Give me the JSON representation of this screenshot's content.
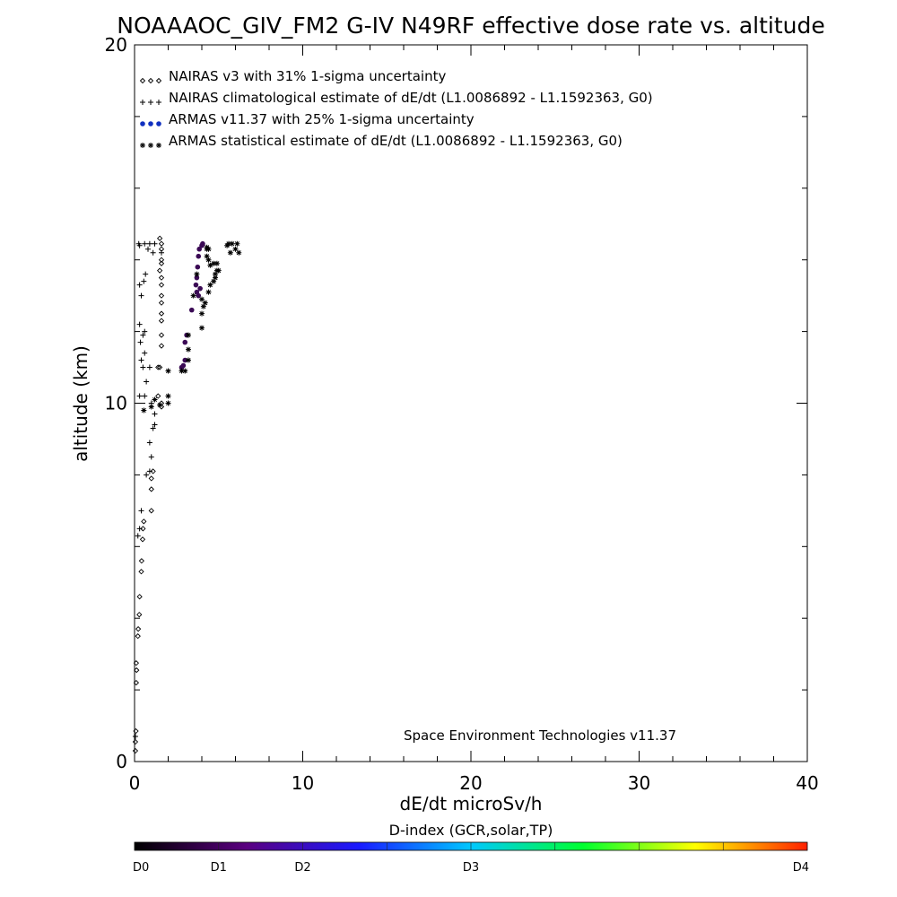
{
  "chart_data": {
    "type": "scatter",
    "title": "NOAAAOC_GIV_FM2 G-IV   N49RF  effective dose rate vs. altitude",
    "xlabel": "dE/dt microSv/h",
    "ylabel": "altitude (km)",
    "xlim": [
      0,
      40
    ],
    "ylim": [
      0,
      20
    ],
    "x_ticks": [
      "0",
      "10",
      "20",
      "30",
      "40"
    ],
    "y_ticks": [
      "0",
      "10",
      "20"
    ],
    "grid": false,
    "legend_position": "top-left",
    "annotation": "Space Environment Technologies v11.37",
    "series": [
      {
        "name": "NAIRAS v3 with 31% 1-sigma uncertainty",
        "marker": "diamond",
        "color": "#000000",
        "points": [
          [
            0.05,
            0.3
          ],
          [
            0.05,
            0.55
          ],
          [
            0.08,
            0.85
          ],
          [
            0.1,
            2.2
          ],
          [
            0.12,
            2.55
          ],
          [
            0.1,
            2.75
          ],
          [
            0.2,
            3.5
          ],
          [
            0.22,
            3.7
          ],
          [
            0.28,
            4.1
          ],
          [
            0.3,
            4.6
          ],
          [
            0.4,
            5.3
          ],
          [
            0.42,
            5.6
          ],
          [
            0.48,
            6.2
          ],
          [
            0.5,
            6.5
          ],
          [
            0.55,
            6.7
          ],
          [
            1.0,
            7.0
          ],
          [
            1.0,
            7.6
          ],
          [
            1.0,
            7.9
          ],
          [
            1.1,
            8.1
          ],
          [
            1.6,
            9.9
          ],
          [
            1.4,
            10.2
          ],
          [
            1.5,
            11.0
          ],
          [
            1.6,
            11.6
          ],
          [
            1.6,
            11.9
          ],
          [
            1.6,
            12.3
          ],
          [
            1.6,
            12.5
          ],
          [
            1.6,
            12.8
          ],
          [
            1.6,
            13.0
          ],
          [
            1.6,
            13.3
          ],
          [
            1.6,
            13.5
          ],
          [
            1.6,
            13.9
          ],
          [
            1.6,
            14.0
          ],
          [
            1.6,
            14.3
          ],
          [
            1.5,
            14.6
          ],
          [
            1.5,
            13.7
          ],
          [
            1.6,
            14.45
          ],
          [
            1.4,
            11.0
          ],
          [
            1.6,
            10.0
          ]
        ]
      },
      {
        "name": "NAIRAS climatological estimate of dE/dt (L1.0086892 - L1.1592363, G0)",
        "marker": "plus",
        "color": "#000000",
        "points": [
          [
            0.05,
            0.7
          ],
          [
            0.2,
            6.3
          ],
          [
            0.3,
            6.5
          ],
          [
            0.4,
            7.0
          ],
          [
            0.7,
            8.0
          ],
          [
            0.9,
            8.1
          ],
          [
            1.0,
            8.5
          ],
          [
            0.9,
            8.9
          ],
          [
            1.1,
            9.3
          ],
          [
            1.2,
            9.4
          ],
          [
            1.2,
            9.7
          ],
          [
            1.0,
            10.0
          ],
          [
            0.3,
            10.2
          ],
          [
            0.6,
            10.2
          ],
          [
            0.7,
            10.6
          ],
          [
            0.5,
            11.0
          ],
          [
            0.9,
            11.0
          ],
          [
            0.4,
            11.2
          ],
          [
            0.6,
            11.4
          ],
          [
            0.35,
            11.7
          ],
          [
            0.5,
            11.9
          ],
          [
            0.6,
            12.0
          ],
          [
            0.3,
            12.2
          ],
          [
            0.4,
            13.0
          ],
          [
            0.3,
            13.3
          ],
          [
            0.55,
            13.4
          ],
          [
            0.65,
            13.6
          ],
          [
            1.1,
            14.2
          ],
          [
            1.6,
            14.2
          ],
          [
            0.3,
            14.4
          ],
          [
            0.6,
            14.45
          ],
          [
            0.9,
            14.45
          ],
          [
            1.2,
            14.45
          ],
          [
            0.25,
            14.45
          ],
          [
            0.8,
            14.3
          ]
        ]
      },
      {
        "name": "ARMAS v11.37 with 25% 1-sigma uncertainty",
        "marker": "dot",
        "color": "#1030c0",
        "points": [
          [
            2.8,
            11.0
          ],
          [
            2.9,
            11.05
          ],
          [
            3.0,
            11.2
          ],
          [
            3.0,
            11.7
          ],
          [
            3.1,
            11.9
          ],
          [
            3.4,
            12.6
          ],
          [
            3.7,
            13.1
          ],
          [
            3.65,
            13.3
          ],
          [
            3.7,
            13.5
          ],
          [
            3.75,
            13.8
          ],
          [
            3.8,
            14.1
          ],
          [
            3.85,
            14.3
          ],
          [
            4.0,
            14.4
          ],
          [
            4.05,
            14.45
          ],
          [
            3.9,
            13.2
          ],
          [
            3.8,
            13.0
          ]
        ]
      },
      {
        "name": "ARMAS statistical estimate of dE/dt (L1.0086892 - L1.1592363, G0)",
        "marker": "asterisk",
        "color": "#000000",
        "points": [
          [
            0.55,
            9.8
          ],
          [
            1.0,
            9.9
          ],
          [
            1.5,
            9.95
          ],
          [
            2.0,
            10.0
          ],
          [
            2.0,
            10.2
          ],
          [
            1.2,
            10.1
          ],
          [
            2.0,
            10.9
          ],
          [
            3.0,
            10.9
          ],
          [
            3.2,
            11.2
          ],
          [
            3.2,
            11.5
          ],
          [
            3.2,
            11.9
          ],
          [
            4.0,
            12.1
          ],
          [
            4.0,
            12.5
          ],
          [
            4.1,
            12.7
          ],
          [
            4.0,
            12.9
          ],
          [
            4.4,
            13.1
          ],
          [
            4.5,
            13.3
          ],
          [
            4.7,
            13.4
          ],
          [
            4.8,
            13.5
          ],
          [
            4.9,
            13.7
          ],
          [
            4.8,
            13.6
          ],
          [
            5.0,
            13.7
          ],
          [
            4.5,
            13.85
          ],
          [
            4.9,
            13.9
          ],
          [
            4.7,
            13.9
          ],
          [
            4.4,
            14.0
          ],
          [
            4.3,
            14.1
          ],
          [
            4.3,
            14.3
          ],
          [
            4.4,
            14.3
          ],
          [
            4.3,
            14.35
          ],
          [
            5.7,
            14.2
          ],
          [
            6.2,
            14.2
          ],
          [
            5.6,
            14.45
          ],
          [
            5.8,
            14.45
          ],
          [
            6.1,
            14.45
          ],
          [
            5.5,
            14.4
          ],
          [
            6.0,
            14.3
          ],
          [
            3.7,
            13.6
          ],
          [
            3.5,
            13.0
          ],
          [
            4.2,
            12.8
          ],
          [
            2.8,
            10.9
          ]
        ]
      }
    ],
    "colorbar": {
      "title": "D-index (GCR,solar,TP)",
      "labels": [
        "D0",
        "D1",
        "D2",
        "D3",
        "D4"
      ],
      "label_positions": [
        0,
        0.125,
        0.25,
        0.5,
        1.0
      ],
      "colors": [
        "#000000",
        "#5a0080",
        "#1a1aff",
        "#00c8ff",
        "#00ff30",
        "#ffff00",
        "#ff2000"
      ]
    }
  }
}
